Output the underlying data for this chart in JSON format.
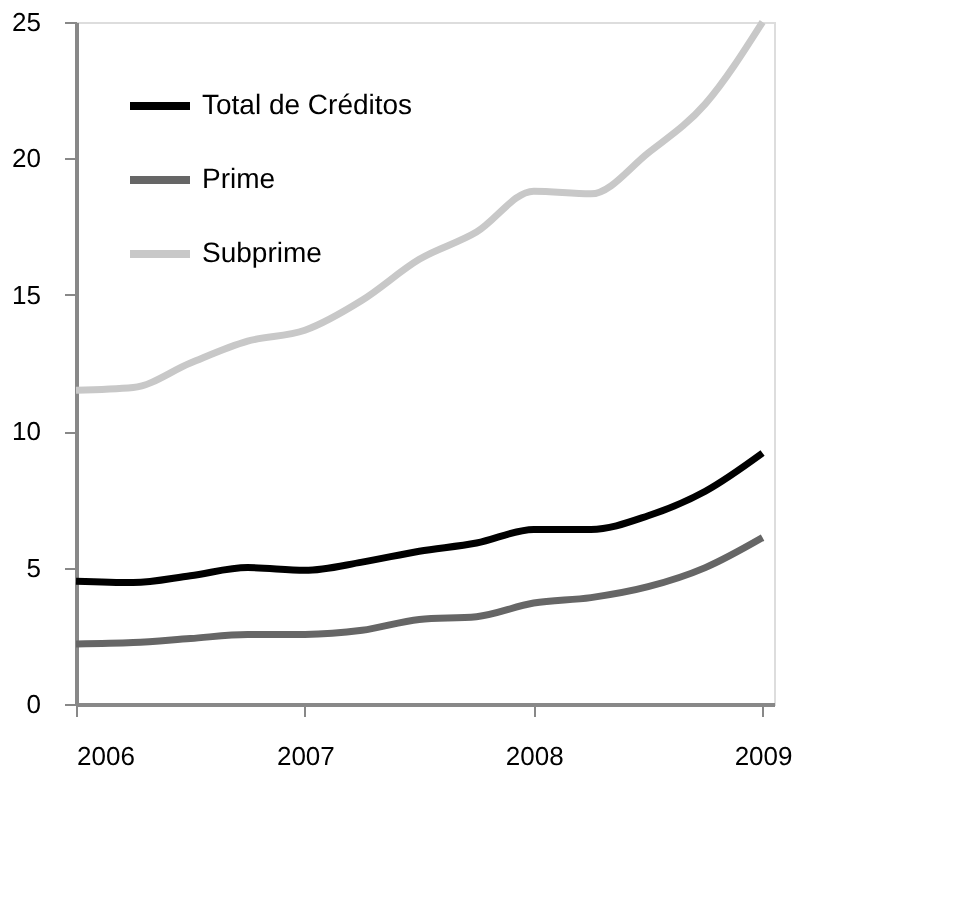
{
  "chart_data": {
    "type": "line",
    "x": [
      2006,
      2006.25,
      2006.5,
      2006.75,
      2007,
      2007.25,
      2007.5,
      2007.75,
      2008,
      2008.25,
      2008.5,
      2008.75,
      2009
    ],
    "series": [
      {
        "name": "Total de Créditos",
        "color": "#000000",
        "values": [
          4.5,
          4.45,
          4.7,
          5.0,
          4.9,
          5.2,
          5.6,
          5.9,
          6.4,
          6.4,
          6.9,
          7.8,
          9.2
        ]
      },
      {
        "name": "Prime",
        "color": "#666666",
        "values": [
          2.2,
          2.25,
          2.4,
          2.55,
          2.55,
          2.7,
          3.1,
          3.2,
          3.7,
          3.9,
          4.3,
          5.0,
          6.1
        ]
      },
      {
        "name": "Subprime",
        "color": "#c8c8c8",
        "values": [
          11.5,
          11.6,
          12.5,
          13.3,
          13.7,
          14.8,
          16.3,
          17.3,
          18.8,
          18.7,
          20.2,
          22.0,
          25.0
        ]
      }
    ],
    "xlim": [
      2006,
      2009.05
    ],
    "xticks": [
      2006,
      2007,
      2008,
      2009
    ],
    "ylim": [
      0,
      25
    ],
    "yticks": [
      0,
      5,
      10,
      15,
      20,
      25
    ],
    "grid": false,
    "legend": "top left",
    "marker": "none",
    "line_style": "solid"
  }
}
